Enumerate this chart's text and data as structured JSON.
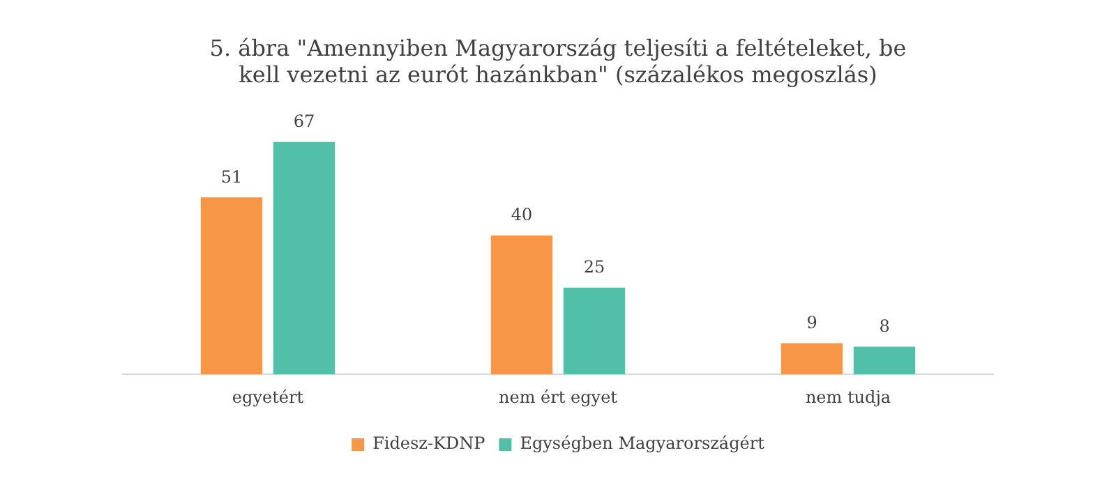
{
  "chart_data": {
    "type": "bar",
    "title": "5. ábra \"Amennyiben Magyarország teljesíti a feltételeket, be kell vezetni az eurót hazánkban\" (százalékos megoszlás)",
    "categories": [
      "egyetért",
      "nem ért egyet",
      "nem tudja"
    ],
    "series": [
      {
        "name": "Fidesz-KDNP",
        "color": "#f79646",
        "values": [
          51,
          40,
          9
        ]
      },
      {
        "name": "Egységben Magyarországért",
        "color": "#52bfa9",
        "values": [
          67,
          25,
          8
        ]
      }
    ],
    "data_labels": true,
    "legend": "bottom",
    "grid": false
  }
}
